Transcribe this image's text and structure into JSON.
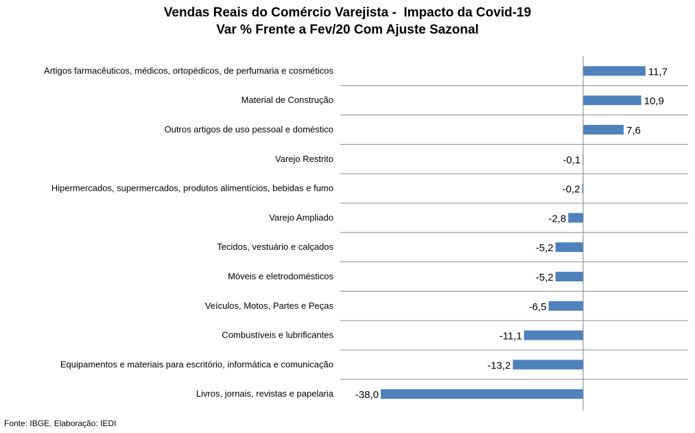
{
  "chart_data": {
    "type": "bar",
    "orientation": "horizontal",
    "title": "Vendas Reais do Comércio Varejista -  Impacto da Covid-19",
    "subtitle": "Var % Frente a Fev/20 Com Ajuste Sazonal",
    "categories": [
      "Artigos farmacêuticos, médicos, ortopédicos, de perfumaria e cosméticos",
      "Material de Construção",
      "Outros artigos de uso pessoal e doméstico",
      "Varejo Restrito",
      "Hipermercados, supermercados, produtos alimentícios, bebidas e fumo",
      "Varejo Ampliado",
      "Tecidos, vestuário e calçados",
      "Móveis e eletrodomésticos",
      "Veículos, Motos, Partes e Peças",
      "Combustíveis e lubrificantes",
      "Equipamentos e materiais para escritório, informática e comunicação",
      "Livros, jornais, revistas e papelaria"
    ],
    "values": [
      11.7,
      10.9,
      7.6,
      -0.1,
      -0.2,
      -2.8,
      -5.2,
      -5.2,
      -6.5,
      -11.1,
      -13.2,
      -38.0
    ],
    "value_labels": [
      "11,7",
      "10,9",
      "7,6",
      "-0,1",
      "-0,2",
      "-2,8",
      "-5,2",
      "-5,2",
      "-6,5",
      "-11,1",
      "-13,2",
      "-38,0"
    ],
    "xlim": [
      -38.0,
      11.7
    ],
    "bar_color": "#4F81BD",
    "grid": "horizontal separators between categories",
    "source": "Fonte: IBGE. Elaboração: IEDI"
  }
}
